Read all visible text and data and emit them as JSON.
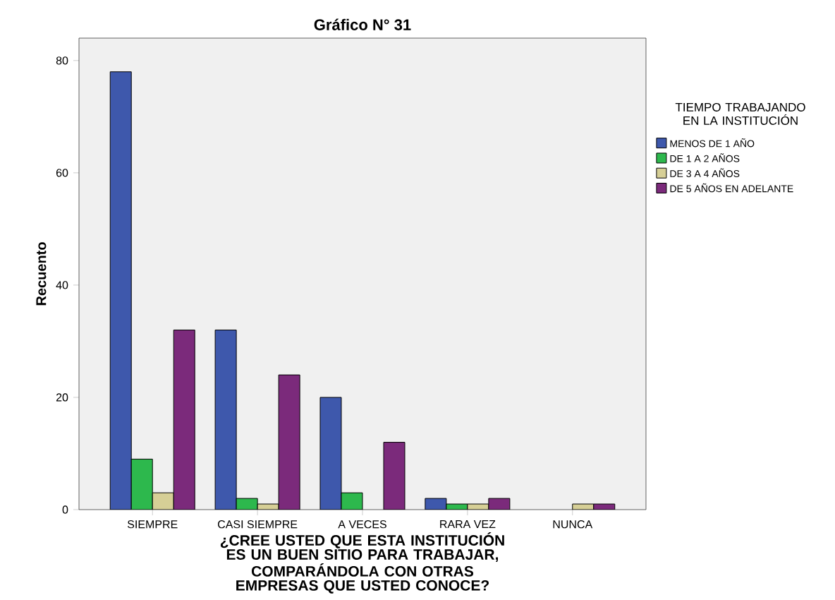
{
  "chart_data": {
    "type": "bar",
    "title": "Gráfico N° 31",
    "xlabel": "¿CREE USTED QUE ESTA INSTITUCIÓN ES UN BUEN SITIO PARA TRABAJAR, COMPARÁNDOLA CON OTRAS EMPRESAS QUE USTED CONOCE?",
    "ylabel": "Recuento",
    "legend_title": "TIEMPO TRABAJANDO EN LA INSTITUCIÓN",
    "categories": [
      "SIEMPRE",
      "CASI SIEMPRE",
      "A VECES",
      "RARA VEZ",
      "NUNCA"
    ],
    "series": [
      {
        "name": "MENOS DE 1 AÑO",
        "color": "#3e58ac",
        "values": [
          78,
          32,
          20,
          2,
          null
        ]
      },
      {
        "name": "DE 1 A 2 AÑOS",
        "color": "#2db84d",
        "values": [
          9,
          2,
          3,
          1,
          null
        ]
      },
      {
        "name": "DE 3 A 4 AÑOS",
        "color": "#d6cf96",
        "values": [
          3,
          1,
          null,
          1,
          1
        ]
      },
      {
        "name": "DE 5 AÑOS EN ADELANTE",
        "color": "#7b2a7b",
        "values": [
          32,
          24,
          12,
          2,
          1
        ]
      }
    ],
    "ylim": [
      0,
      84
    ],
    "yticks": [
      0,
      20,
      40,
      60,
      80
    ],
    "grid": false,
    "legend": "right"
  }
}
